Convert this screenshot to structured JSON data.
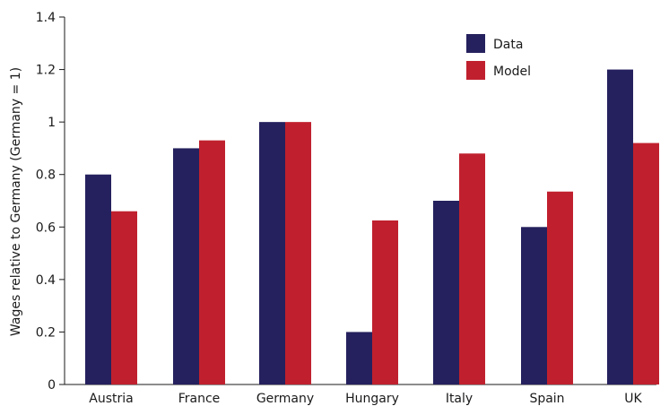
{
  "chart_data": {
    "type": "bar",
    "title": "",
    "xlabel": "",
    "ylabel": "Wages relative to Germany (Germany = 1)",
    "categories": [
      "Austria",
      "France",
      "Germany",
      "Hungary",
      "Italy",
      "Spain",
      "UK"
    ],
    "series": [
      {
        "name": "Data",
        "color": "#25215e",
        "values": [
          0.8,
          0.9,
          1.0,
          0.2,
          0.7,
          0.6,
          1.2
        ]
      },
      {
        "name": "Model",
        "color": "#c0202e",
        "values": [
          0.66,
          0.93,
          1.0,
          0.625,
          0.88,
          0.735,
          0.92
        ]
      }
    ],
    "ylim": [
      0,
      1.4
    ],
    "yticks": [
      "0",
      "0.2",
      "0.4",
      "0.6",
      "0.8",
      "1",
      "1.2",
      "1.4"
    ],
    "ytick_values": [
      0,
      0.2,
      0.4,
      0.6,
      0.8,
      1.0,
      1.2,
      1.4
    ],
    "grid": false,
    "legend_position": "top-right"
  }
}
